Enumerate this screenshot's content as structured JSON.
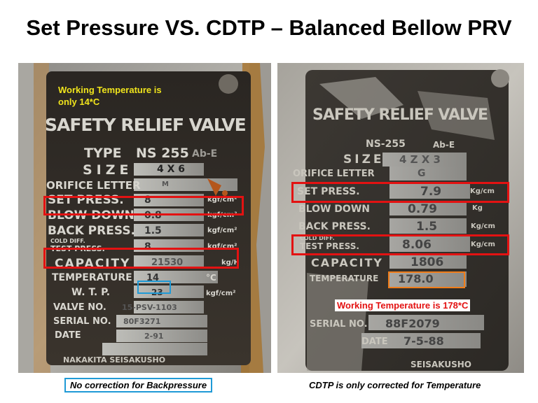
{
  "title": "Set Pressure VS. CDTP – Balanced Bellow PRV",
  "colors": {
    "highlight_red": "#e31212",
    "highlight_blue": "#1f9ad6",
    "highlight_orange": "#f07d1a",
    "note_yellow": "#f0e41c",
    "note_red": "#e31212"
  },
  "left_photo": {
    "note": "Working Temperature is\nonly 14*C",
    "plate": {
      "heading": "SAFETY RELIEF VALVE",
      "type_label": "TYPE",
      "type_value": "NS 255",
      "type_suffix": "Ab-E",
      "size_label": "SIZE",
      "size_value": "4  X  6",
      "orifice_label": "ORIFICE LETTER",
      "orifice_value": "M",
      "set_press_label": "SET PRESS.",
      "set_press_value": "8",
      "set_press_unit": "kgf/cm²",
      "blow_down_label": "BLOW DOWN",
      "blow_down_value": "0.8",
      "blow_down_unit": "kgf/cm²",
      "back_press_label": "BACK PRESS.",
      "back_press_value": "1.5",
      "back_press_unit": "kgf/cm²",
      "cold_diff_label_top": "COLD DIFF.",
      "cold_diff_label_bottom": "TEST PRESS.",
      "cold_diff_value": "8",
      "cold_diff_unit": "kgf/cm²",
      "capacity_label": "CAPACITY",
      "capacity_value": "21530",
      "capacity_unit": "kg/H",
      "temperature_label": "TEMPERATURE",
      "temperature_value": "14",
      "temperature_unit": "°C",
      "wtp_label": "W. T. P.",
      "wtp_value": "23",
      "wtp_unit": "kgf/cm²",
      "valve_no_label": "VALVE NO.",
      "valve_no_value": "15-PSV-1103",
      "serial_no_label": "SERIAL NO.",
      "serial_no_value": "80F3271",
      "date_label": "DATE",
      "date_value": "2-91",
      "maker": "NAKAKITA SEISAKUSHO"
    }
  },
  "right_photo": {
    "note": "Working Temperature is 178*C",
    "plate": {
      "heading": "SAFETY RELIEF VALVE",
      "type_value": "NS-255",
      "type_suffix": "Ab-E",
      "size_label": "SIZE",
      "size_value": "4 Z X 3",
      "orifice_label": "ORIFICE LETTER",
      "orifice_value": "G",
      "set_press_label": "SET PRESS.",
      "set_press_value": "7.9",
      "set_press_unit": "Kg/cm",
      "blow_down_label": "BLOW DOWN",
      "blow_down_value": "0.79",
      "blow_down_unit": "Kg",
      "back_press_label": "BACK PRESS.",
      "back_press_value": "1.5",
      "back_press_unit": "Kg/cm",
      "cold_diff_label_top": "COLD DIFF.",
      "cold_diff_label_bottom": "TEST PRESS.",
      "cold_diff_value": "8.06",
      "cold_diff_unit": "Kg/cm",
      "capacity_label": "CAPACITY",
      "capacity_value": "1806",
      "temperature_label": "TEMPERATURE",
      "temperature_value": "178.0",
      "serial_no_label": "SERIAL NO.",
      "serial_no_value": "88F2079",
      "date_label": "DATE",
      "date_value": "7-5-88",
      "maker": "SEISAKUSHO"
    }
  },
  "caption_left": "No correction for Backpressure",
  "caption_right": "CDTP is only corrected for Temperature"
}
